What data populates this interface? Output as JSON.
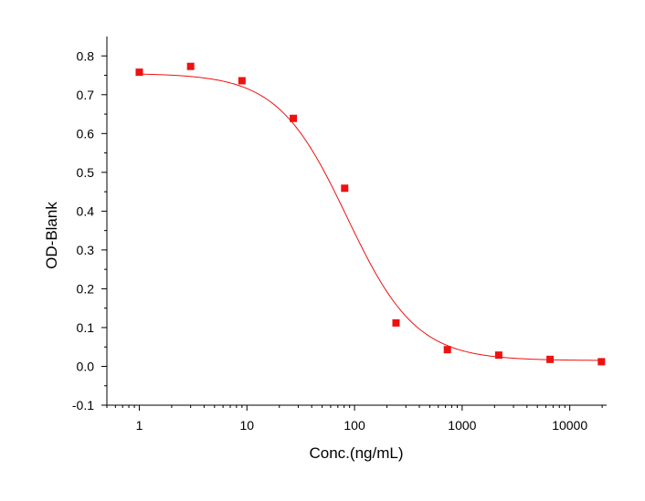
{
  "chart_data": {
    "type": "scatter",
    "title": "",
    "xlabel": "Conc.(ng/mL)",
    "ylabel": "OD-Blank",
    "xscale": "log",
    "xlim": [
      0.5,
      22000
    ],
    "ylim": [
      -0.1,
      0.85
    ],
    "grid": false,
    "legend": "none",
    "x_ticks": [
      {
        "value": 1,
        "label": "1"
      },
      {
        "value": 10,
        "label": "10"
      },
      {
        "value": 100,
        "label": "100"
      },
      {
        "value": 1000,
        "label": "1000"
      },
      {
        "value": 10000,
        "label": "10000"
      }
    ],
    "y_ticks": [
      {
        "value": -0.1,
        "label": "-0.1"
      },
      {
        "value": 0.0,
        "label": "0.0"
      },
      {
        "value": 0.1,
        "label": "0.1"
      },
      {
        "value": 0.2,
        "label": "0.2"
      },
      {
        "value": 0.3,
        "label": "0.3"
      },
      {
        "value": 0.4,
        "label": "0.4"
      },
      {
        "value": 0.5,
        "label": "0.5"
      },
      {
        "value": 0.6,
        "label": "0.6"
      },
      {
        "value": 0.7,
        "label": "0.7"
      },
      {
        "value": 0.8,
        "label": "0.8"
      }
    ],
    "series": [
      {
        "marker": "square",
        "color": "#ee1111",
        "x": [
          1,
          3,
          9,
          27,
          81,
          243,
          729,
          2187,
          6561,
          19683
        ],
        "y": [
          0.758,
          0.773,
          0.736,
          0.639,
          0.459,
          0.112,
          0.043,
          0.029,
          0.018,
          0.012
        ]
      }
    ],
    "fit_curve": {
      "model": "4PL",
      "color": "#ee1111",
      "top": 0.755,
      "bottom": 0.015,
      "ec50": 85,
      "hill": 1.35
    }
  }
}
